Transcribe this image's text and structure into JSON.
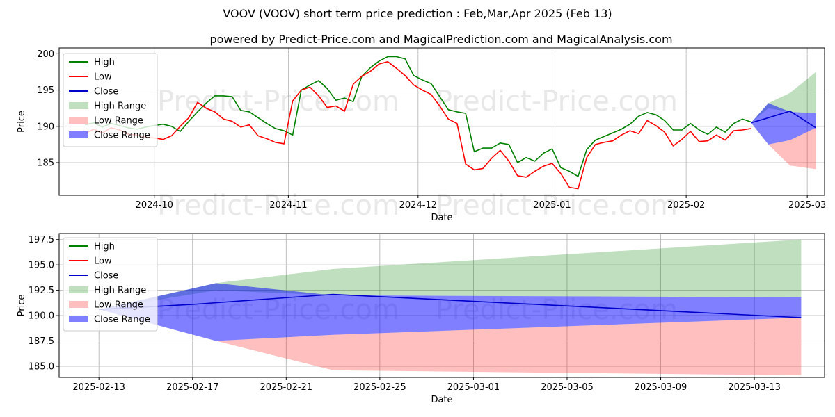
{
  "chart_data": [
    {
      "type": "line",
      "title": "VOOV (VOOV) short term price prediction : Feb,Mar,Apr 2025 (Feb 13)",
      "subtitle": "powered by Predict-Price.com and MagicalPrediction.com and MagicalAnalysis.com",
      "xlabel": "Date",
      "ylabel": "Price",
      "xlim": [
        -6,
        171
      ],
      "ylim": [
        180.5,
        200.8
      ],
      "yticks": [
        185,
        190,
        195,
        200
      ],
      "xticks": [
        {
          "x": 16,
          "label": "2024-10"
        },
        {
          "x": 47,
          "label": "2024-11"
        },
        {
          "x": 77,
          "label": "2024-12"
        },
        {
          "x": 108,
          "label": "2025-01"
        },
        {
          "x": 139,
          "label": "2025-02"
        },
        {
          "x": 167,
          "label": "2025-03"
        }
      ],
      "grid": true,
      "legend_position": "top-left",
      "watermarks": [
        "Predict-Price.com",
        "Predict-Price.com",
        "Predict-Price.com",
        "Predict-Price.com"
      ],
      "series": [
        {
          "name": "High",
          "color": "#008000",
          "x": [
            0,
            2,
            4,
            6,
            8,
            10,
            12,
            14,
            16,
            18,
            20,
            22,
            24,
            26,
            28,
            30,
            32,
            34,
            36,
            38,
            40,
            42,
            44,
            46,
            48,
            50,
            52,
            54,
            56,
            58,
            60,
            62,
            64,
            66,
            68,
            70,
            72,
            74,
            76,
            78,
            80,
            82,
            84,
            86,
            88,
            90,
            92,
            94,
            96,
            98,
            100,
            102,
            104,
            106,
            108,
            110,
            112,
            114,
            116,
            118,
            120,
            122,
            124,
            126,
            128,
            130,
            132,
            134,
            136,
            138,
            140,
            142,
            144,
            146,
            148,
            150,
            152,
            154
          ],
          "y": [
            190.2,
            190.5,
            189.9,
            190.4,
            190.1,
            189.8,
            189.6,
            189.9,
            190.1,
            190.3,
            190.0,
            189.3,
            190.7,
            192.0,
            193.2,
            194.2,
            194.2,
            194.1,
            192.2,
            192.0,
            191.2,
            190.4,
            189.7,
            189.4,
            188.8,
            195.0,
            195.7,
            196.3,
            195.2,
            193.6,
            193.9,
            193.4,
            196.9,
            198.1,
            199.0,
            199.6,
            199.6,
            199.3,
            197.0,
            196.4,
            195.9,
            194.1,
            192.3,
            192.0,
            191.8,
            186.5,
            187.0,
            187.0,
            187.7,
            187.5,
            185.0,
            185.7,
            185.2,
            186.3,
            186.9,
            184.3,
            183.8,
            183.1,
            186.8,
            188.1,
            188.6,
            189.1,
            189.6,
            190.3,
            191.4,
            191.9,
            191.6,
            190.8,
            189.5,
            189.5,
            190.4,
            189.5,
            188.9,
            189.9,
            189.2,
            190.4,
            191.0,
            190.6
          ]
        },
        {
          "name": "Low",
          "color": "#ff0000",
          "x": [
            0,
            2,
            4,
            6,
            8,
            10,
            12,
            14,
            16,
            18,
            20,
            22,
            24,
            26,
            28,
            30,
            32,
            34,
            36,
            38,
            40,
            42,
            44,
            46,
            48,
            50,
            52,
            54,
            56,
            58,
            60,
            62,
            64,
            66,
            68,
            70,
            72,
            74,
            76,
            78,
            80,
            82,
            84,
            86,
            88,
            90,
            92,
            94,
            96,
            98,
            100,
            102,
            104,
            106,
            108,
            110,
            112,
            114,
            116,
            118,
            120,
            122,
            124,
            126,
            128,
            130,
            132,
            134,
            136,
            138,
            140,
            142,
            144,
            146,
            148,
            150,
            152,
            154
          ],
          "y": [
            189.0,
            189.6,
            189.1,
            189.8,
            189.5,
            188.9,
            188.8,
            188.5,
            188.4,
            188.2,
            188.7,
            190.0,
            191.2,
            193.3,
            192.5,
            192.0,
            191.0,
            190.7,
            189.9,
            190.2,
            188.7,
            188.3,
            187.8,
            187.6,
            193.5,
            195.0,
            195.4,
            194.2,
            192.6,
            192.8,
            192.1,
            195.8,
            196.9,
            197.6,
            198.6,
            198.9,
            198.0,
            197.0,
            195.7,
            195.0,
            194.4,
            192.8,
            191.0,
            190.4,
            184.8,
            184.0,
            184.2,
            185.6,
            186.7,
            185.2,
            183.2,
            183.0,
            183.8,
            184.5,
            184.9,
            183.5,
            181.6,
            181.4,
            185.7,
            187.5,
            187.8,
            188.0,
            188.8,
            189.4,
            189.0,
            190.8,
            190.1,
            189.2,
            187.3,
            188.2,
            189.3,
            187.9,
            188.0,
            188.8,
            188.1,
            189.4,
            189.5,
            189.7
          ]
        },
        {
          "name": "Close",
          "color": "#0000cd",
          "x": [
            154,
            157,
            163,
            169
          ],
          "y": [
            190.5,
            191.0,
            192.1,
            189.8
          ]
        }
      ],
      "ranges": [
        {
          "name": "High Range",
          "color": "#008000",
          "opacity": 0.25,
          "x": [
            154,
            158,
            163,
            169
          ],
          "lower": [
            190.5,
            192.5,
            192.0,
            191.8
          ],
          "upper": [
            190.5,
            193.2,
            194.6,
            197.5
          ]
        },
        {
          "name": "Low Range",
          "color": "#ff0000",
          "opacity": 0.25,
          "x": [
            154,
            158,
            163,
            169
          ],
          "lower": [
            190.5,
            187.5,
            184.6,
            184.1
          ],
          "upper": [
            190.5,
            187.5,
            188.1,
            189.8
          ]
        },
        {
          "name": "Close Range",
          "color": "#0000ff",
          "opacity": 0.5,
          "x": [
            154,
            158,
            163,
            169
          ],
          "lower": [
            190.5,
            187.5,
            188.1,
            189.8
          ],
          "upper": [
            190.5,
            193.2,
            192.0,
            191.8
          ]
        }
      ]
    },
    {
      "type": "line",
      "xlabel": "Date",
      "ylabel": "Price",
      "xlim": [
        -1.7,
        31.0
      ],
      "ylim": [
        183.9,
        198.1
      ],
      "yticks": [
        185.0,
        187.5,
        190.0,
        192.5,
        195.0,
        197.5
      ],
      "ytick_labels": [
        "185.0",
        "187.5",
        "190.0",
        "192.5",
        "195.0",
        "197.5"
      ],
      "xticks": [
        {
          "x": 0,
          "label": "2025-02-13"
        },
        {
          "x": 4,
          "label": "2025-02-17"
        },
        {
          "x": 8,
          "label": "2025-02-21"
        },
        {
          "x": 12,
          "label": "2025-02-25"
        },
        {
          "x": 16,
          "label": "2025-03-01"
        },
        {
          "x": 20,
          "label": "2025-03-05"
        },
        {
          "x": 24,
          "label": "2025-03-09"
        },
        {
          "x": 28,
          "label": "2025-03-13"
        }
      ],
      "grid": true,
      "legend_position": "top-left",
      "watermarks": [
        "Predict-Price.com",
        "Predict-Price.com"
      ],
      "series": [
        {
          "name": "High",
          "color": "#008000",
          "x": [],
          "y": []
        },
        {
          "name": "Low",
          "color": "#ff0000",
          "x": [],
          "y": []
        },
        {
          "name": "Close",
          "color": "#0000cd",
          "x": [
            0,
            4,
            10,
            30
          ],
          "y": [
            190.6,
            191.1,
            192.1,
            189.8
          ]
        }
      ],
      "ranges": [
        {
          "name": "High Range",
          "color": "#008000",
          "opacity": 0.25,
          "x": [
            0,
            5,
            10,
            30
          ],
          "lower": [
            190.6,
            192.5,
            192.0,
            191.8
          ],
          "upper": [
            190.6,
            193.2,
            194.6,
            197.5
          ]
        },
        {
          "name": "Low Range",
          "color": "#ff0000",
          "opacity": 0.25,
          "x": [
            0,
            5,
            10,
            30
          ],
          "lower": [
            190.6,
            187.5,
            184.6,
            184.1
          ],
          "upper": [
            190.6,
            187.5,
            188.1,
            189.8
          ]
        },
        {
          "name": "Close Range",
          "color": "#0000ff",
          "opacity": 0.5,
          "x": [
            0,
            5,
            10,
            30
          ],
          "lower": [
            190.6,
            187.5,
            188.1,
            189.8
          ],
          "upper": [
            190.6,
            193.2,
            192.0,
            191.8
          ]
        }
      ]
    }
  ]
}
